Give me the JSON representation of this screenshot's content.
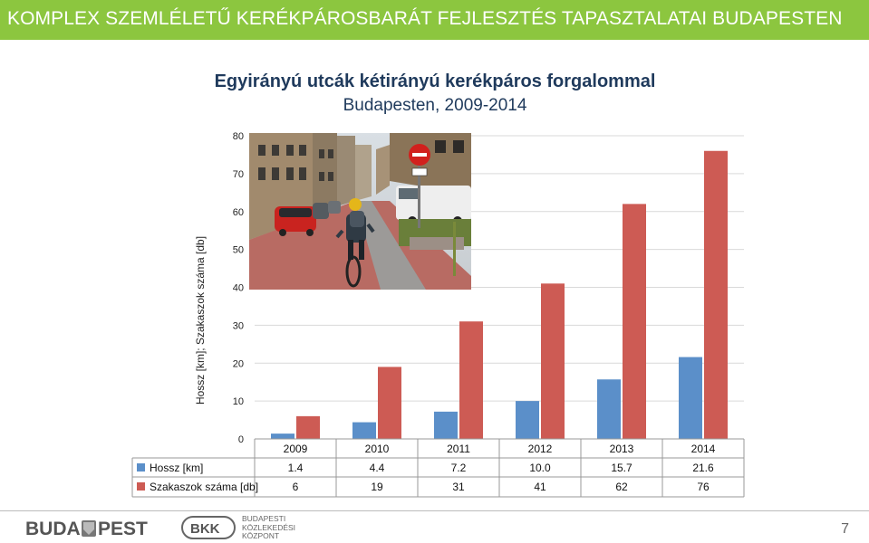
{
  "header": {
    "banner_title": "KOMPLEX SZEMLÉLETŰ KERÉKPÁROSBARÁT FEJLESZTÉS TAPASZTALATAI BUDAPESTEN",
    "banner_color": "#8cc63f"
  },
  "chart_data": {
    "type": "bar",
    "title": "Egyirányú utcák kétirányú kerékpáros forgalommal",
    "subtitle": "Budapesten, 2009-2014",
    "ylabel": "Hossz [km]; Szakaszok száma [db]",
    "xlabel": "",
    "ylim": [
      0,
      80
    ],
    "yticks": [
      "0",
      "10",
      "20",
      "30",
      "40",
      "50",
      "60",
      "70",
      "80"
    ],
    "grid": true,
    "categories": [
      "2009",
      "2010",
      "2011",
      "2012",
      "2013",
      "2014"
    ],
    "series": [
      {
        "name": "Hossz [km]",
        "color": "#5b8fc9",
        "values": [
          1.4,
          4.4,
          7.2,
          10.0,
          15.7,
          21.6
        ],
        "labels": [
          "1.4",
          "4.4",
          "7.2",
          "10.0",
          "15.7",
          "21.6"
        ]
      },
      {
        "name": "Szakaszok száma [db]",
        "color": "#cd5b54",
        "values": [
          6,
          19,
          31,
          41,
          62,
          76
        ],
        "labels": [
          "6",
          "19",
          "31",
          "41",
          "62",
          "76"
        ]
      }
    ],
    "data_table": true
  },
  "photo": {
    "subject": "cyclist-on-one-way-street-photo"
  },
  "footer": {
    "logo_city": "BUDA PEST",
    "logo_bkk": "BKK",
    "bkk_name_lines": [
      "BUDAPESTI",
      "KÖZLEKEDÉSI",
      "KÖZPONT"
    ],
    "page_number": "7"
  }
}
